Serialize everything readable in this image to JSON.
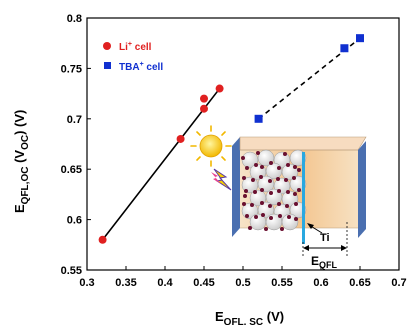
{
  "chart_data": {
    "type": "scatter",
    "xlabel": {
      "main": "E",
      "sub": "QFL, SC",
      "unit": " (V)"
    },
    "ylabel": {
      "main": "E",
      "sub1": "QFL,OC",
      "mid": " (V",
      "sub2": "OC",
      "unit": ") (V)"
    },
    "xlim": [
      0.3,
      0.7
    ],
    "ylim": [
      0.55,
      0.8
    ],
    "xticks": [
      "0.3",
      "0.35",
      "0.4",
      "0.45",
      "0.5",
      "0.55",
      "0.6",
      "0.65",
      "0.7"
    ],
    "yticks": [
      "0.55",
      "0.6",
      "0.65",
      "0.7",
      "0.75",
      "0.8"
    ],
    "legend_position": "top-right",
    "series": [
      {
        "name_main": "Li",
        "name_sup": "+",
        "name_tail": " cell",
        "color": "#e02020",
        "marker": "circle",
        "line_style": "solid",
        "points": [
          [
            0.32,
            0.58
          ],
          [
            0.42,
            0.68
          ],
          [
            0.45,
            0.71
          ],
          [
            0.45,
            0.72
          ],
          [
            0.47,
            0.73
          ]
        ],
        "fit": [
          [
            0.32,
            0.58
          ],
          [
            0.47,
            0.73
          ]
        ]
      },
      {
        "name_main": "TBA",
        "name_sup": "+",
        "name_tail": " cell",
        "color": "#1030d0",
        "marker": "square",
        "line_style": "dashed",
        "points": [
          [
            0.52,
            0.7
          ],
          [
            0.63,
            0.77
          ],
          [
            0.65,
            0.78
          ]
        ],
        "fit": [
          [
            0.52,
            0.7
          ],
          [
            0.65,
            0.78
          ]
        ]
      }
    ],
    "inset": {
      "electrode_label": "Ti",
      "energy_label_main": "E",
      "energy_label_sub": "QFL",
      "sun_icon": "sun-icon",
      "light_icon": "lightning-icon"
    }
  }
}
